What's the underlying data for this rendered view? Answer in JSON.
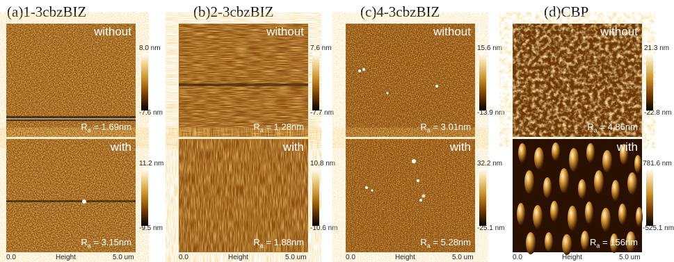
{
  "panels": [
    {
      "title": "(a)1-3cbzBIZ",
      "top": {
        "condition": "without",
        "ra_label": "R",
        "ra_sub": "a",
        "ra_value": " = 1.69nm",
        "scale_max": "8.0 nm",
        "scale_min": "-7.6 nm"
      },
      "bottom": {
        "condition": "with",
        "ra_label": "R",
        "ra_sub": "a",
        "ra_value": " = 3.15nm",
        "scale_max": "11.2 nm",
        "scale_min": "-9.5 nm"
      },
      "axis": {
        "start": "0.0",
        "label": "Height",
        "end": "5.0 um"
      }
    },
    {
      "title": "(b)2-3cbzBIZ",
      "top": {
        "condition": "without",
        "ra_label": "R",
        "ra_sub": "a",
        "ra_value": " = 1.28nm",
        "scale_max": "7.6 nm",
        "scale_min": "-7.7 nm"
      },
      "bottom": {
        "condition": "with",
        "ra_label": "R",
        "ra_sub": "a",
        "ra_value": " = 1.88nm",
        "scale_max": "10.8 nm",
        "scale_min": "-10.6 nm"
      },
      "axis": {
        "start": "0.0",
        "label": "Height",
        "end": "5.0 um"
      }
    },
    {
      "title": "(c)4-3cbzBIZ",
      "top": {
        "condition": "without",
        "ra_label": "R",
        "ra_sub": "a",
        "ra_value": " = 3.01nm",
        "scale_max": "15.6 nm",
        "scale_min": "-13.9 nm"
      },
      "bottom": {
        "condition": "with",
        "ra_label": "R",
        "ra_sub": "a",
        "ra_value": " = 5.28nm",
        "scale_max": "32.2 nm",
        "scale_min": "-25.1 nm"
      },
      "axis": {
        "start": "0.0",
        "label": "Height",
        "end": "5.0 um"
      }
    },
    {
      "title": "(d)CBP",
      "top": {
        "condition": "without",
        "ra_label": "R",
        "ra_sub": "a",
        "ra_value": " = 4.86nm",
        "scale_max": "21.3 nm",
        "scale_min": "-22.8 nm"
      },
      "bottom": {
        "condition": "with",
        "ra_label": "R",
        "ra_sub": "a",
        "ra_value": " = 156nm",
        "scale_max": "781.6 nm",
        "scale_min": "-525.1 nm"
      },
      "axis": {
        "start": "0.0",
        "label": "Height",
        "end": "5.0 um"
      }
    }
  ],
  "colors": {
    "afm_dark": "#4a2300",
    "afm_mid": "#a8661a",
    "afm_light": "#f3dca0"
  }
}
